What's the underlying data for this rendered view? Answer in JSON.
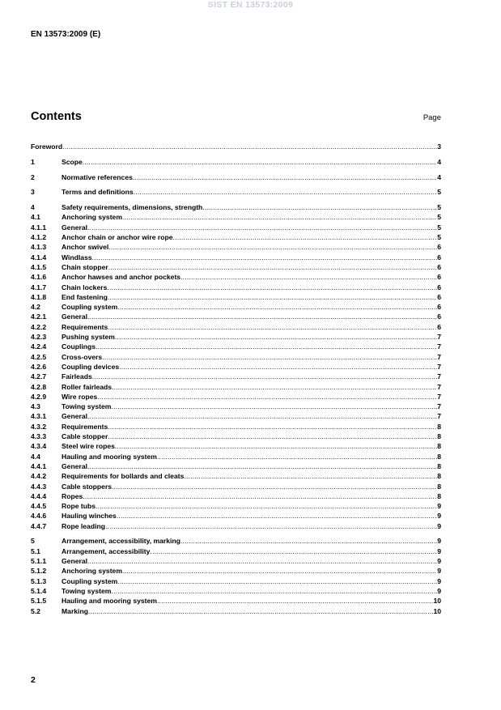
{
  "watermark": "SIST EN 13573:2009",
  "header": "EN 13573:2009 (E)",
  "title": "Contents",
  "page_label": "Page",
  "groups": [
    [
      {
        "num": "",
        "title": "Foreword",
        "page": "3"
      }
    ],
    [
      {
        "num": "1",
        "title": "Scope",
        "page": "4"
      }
    ],
    [
      {
        "num": "2",
        "title": "Normative references",
        "page": "4"
      }
    ],
    [
      {
        "num": "3",
        "title": "Terms and definitions",
        "page": "5"
      }
    ],
    [
      {
        "num": "4",
        "title": "Safety requirements, dimensions, strength",
        "page": "5"
      },
      {
        "num": "4.1",
        "title": "Anchoring system",
        "page": "5"
      },
      {
        "num": "4.1.1",
        "title": "General",
        "page": "5"
      },
      {
        "num": "4.1.2",
        "title": "Anchor chain or anchor wire rope",
        "page": "5"
      },
      {
        "num": "4.1.3",
        "title": "Anchor swivel",
        "page": "6"
      },
      {
        "num": "4.1.4",
        "title": "Windlass",
        "page": "6"
      },
      {
        "num": "4.1.5",
        "title": "Chain stopper",
        "page": "6"
      },
      {
        "num": "4.1.6",
        "title": "Anchor hawses and anchor pockets",
        "page": "6"
      },
      {
        "num": "4.1.7",
        "title": "Chain lockers",
        "page": "6"
      },
      {
        "num": "4.1.8",
        "title": "End fastening",
        "page": "6"
      },
      {
        "num": "4.2",
        "title": "Coupling system",
        "page": "6"
      },
      {
        "num": "4.2.1",
        "title": "General",
        "page": "6"
      },
      {
        "num": "4.2.2",
        "title": "Requirements",
        "page": "6"
      },
      {
        "num": "4.2.3",
        "title": "Pushing system",
        "page": "7"
      },
      {
        "num": "4.2.4",
        "title": "Couplings",
        "page": "7"
      },
      {
        "num": "4.2.5",
        "title": "Cross-overs",
        "page": "7"
      },
      {
        "num": "4.2.6",
        "title": "Coupling devices",
        "page": "7"
      },
      {
        "num": "4.2.7",
        "title": "Fairleads",
        "page": "7"
      },
      {
        "num": "4.2.8",
        "title": "Roller fairleads",
        "page": "7"
      },
      {
        "num": "4.2.9",
        "title": "Wire ropes",
        "page": "7"
      },
      {
        "num": "4.3",
        "title": "Towing system",
        "page": "7"
      },
      {
        "num": "4.3.1",
        "title": "General",
        "page": "7"
      },
      {
        "num": "4.3.2",
        "title": "Requirements",
        "page": "8"
      },
      {
        "num": "4.3.3",
        "title": "Cable stopper",
        "page": "8"
      },
      {
        "num": "4.3.4",
        "title": "Steel wire ropes",
        "page": "8"
      },
      {
        "num": "4.4",
        "title": "Hauling and mooring system",
        "page": "8"
      },
      {
        "num": "4.4.1",
        "title": "General",
        "page": "8"
      },
      {
        "num": "4.4.2",
        "title": "Requirements for bollards and cleats",
        "page": "8"
      },
      {
        "num": "4.4.3",
        "title": "Cable stoppers",
        "page": "8"
      },
      {
        "num": "4.4.4",
        "title": "Ropes",
        "page": "8"
      },
      {
        "num": "4.4.5",
        "title": "Rope tubs",
        "page": "9"
      },
      {
        "num": "4.4.6",
        "title": "Hauling winches",
        "page": "9"
      },
      {
        "num": "4.4.7",
        "title": "Rope leading",
        "page": "9"
      }
    ],
    [
      {
        "num": "5",
        "title": "Arrangement, accessibility, marking",
        "page": "9"
      },
      {
        "num": "5.1",
        "title": "Arrangement, accessibility",
        "page": "9"
      },
      {
        "num": "5.1.1",
        "title": "General",
        "page": "9"
      },
      {
        "num": "5.1.2",
        "title": "Anchoring system",
        "page": "9"
      },
      {
        "num": "5.1.3",
        "title": "Coupling system",
        "page": "9"
      },
      {
        "num": "5.1.4",
        "title": "Towing system",
        "page": "9"
      },
      {
        "num": "5.1.5",
        "title": "Hauling and mooring system",
        "page": "10"
      },
      {
        "num": "5.2",
        "title": "Marking",
        "page": "10"
      }
    ]
  ],
  "page_number": "2"
}
